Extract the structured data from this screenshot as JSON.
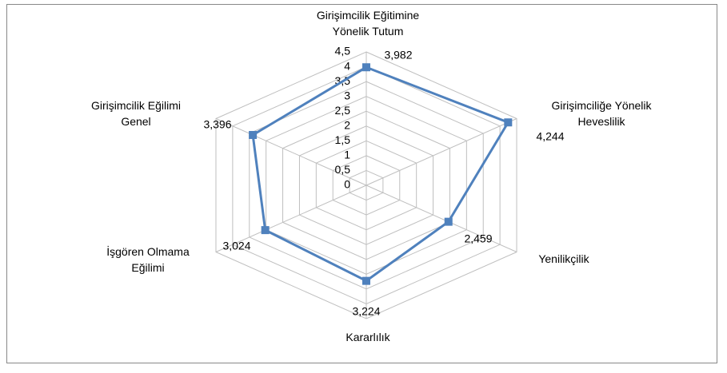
{
  "chart_data": {
    "type": "radar",
    "categories": [
      "Girişimcilik Eğitimine\nYönelik Tutum",
      "Girişimciliğe Yönelik\nHeveslilik",
      "Yenilikçilik",
      "Kararlılık",
      "İşgören Olmama\nEğilimi",
      "Girişimcilik Eğilimi\nGenel"
    ],
    "values": [
      3.982,
      4.244,
      2.459,
      3.224,
      3.024,
      3.396
    ],
    "value_labels": [
      "3,982",
      "4,244",
      "2,459",
      "3,224",
      "3,024",
      "3,396"
    ],
    "color": "#4f81bd",
    "ylim": [
      0,
      4.5
    ],
    "yticks": [
      0,
      {
        "value": 0.5,
        "label": "0,5"
      },
      1,
      {
        "value": 1.5,
        "label": "1,5"
      },
      2,
      {
        "value": 2.5,
        "label": "2,5"
      },
      3,
      {
        "value": 3.5,
        "label": "3,5"
      },
      4,
      {
        "value": 4.5,
        "label": "4,5"
      }
    ],
    "grid": true
  }
}
